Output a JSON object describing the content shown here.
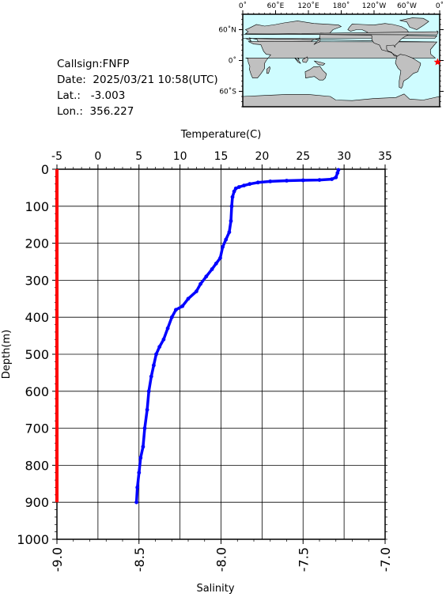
{
  "info": {
    "callsign": "Callsign:FNFP",
    "date": "Date:  2025/03/21 10:58(UTC)",
    "lat": "Lat.:   -3.003",
    "lon": "Lon.:  356.227"
  },
  "map": {
    "lon_labels": [
      "0˚",
      "60˚E",
      "120˚E",
      "180˚",
      "120˚W",
      "60˚W",
      "0˚"
    ],
    "lat_labels": [
      "60˚N",
      "0˚",
      "60˚S"
    ],
    "ocean_color": "#cffcff",
    "land_color": "#c0c0c0",
    "marker_color": "#ff0000",
    "marker": {
      "lon": 356.227,
      "lat": -3.003
    }
  },
  "chart_data": {
    "type": "line",
    "top_axis_label": "Temperature(C)",
    "left_axis_label": "Depth(m)",
    "bottom_axis_label": "Salinity",
    "temperature_ticks": [
      "-5",
      "0",
      "5",
      "10",
      "15",
      "20",
      "25",
      "30",
      "35"
    ],
    "depth_ticks": [
      "0",
      "100",
      "200",
      "300",
      "400",
      "500",
      "600",
      "700",
      "800",
      "900",
      "1000"
    ],
    "salinity_ticks": [
      "-9.0",
      "-8.5",
      "-8.0",
      "-7.5",
      "-7.0"
    ],
    "xlim_temperature": [
      -5,
      35
    ],
    "xlim_salinity": [
      -9.0,
      -7.0
    ],
    "ylim_depth": [
      0,
      1000
    ],
    "series": [
      {
        "axis": "temperature",
        "color": "#0000ff",
        "points": [
          [
            29.3,
            2
          ],
          [
            29.2,
            10
          ],
          [
            29.0,
            22
          ],
          [
            28.5,
            27
          ],
          [
            27.0,
            29
          ],
          [
            25.0,
            30
          ],
          [
            23.0,
            31
          ],
          [
            21.0,
            33
          ],
          [
            19.5,
            36
          ],
          [
            18.5,
            40
          ],
          [
            17.8,
            44
          ],
          [
            17.2,
            48
          ],
          [
            16.8,
            52
          ],
          [
            16.6,
            60
          ],
          [
            16.4,
            75
          ],
          [
            16.3,
            100
          ],
          [
            16.2,
            140
          ],
          [
            16.0,
            170
          ],
          [
            15.6,
            190
          ],
          [
            15.2,
            210
          ],
          [
            14.9,
            240
          ],
          [
            14.4,
            255
          ],
          [
            13.9,
            270
          ],
          [
            13.2,
            290
          ],
          [
            12.5,
            310
          ],
          [
            12.0,
            330
          ],
          [
            11.0,
            350
          ],
          [
            10.3,
            370
          ],
          [
            9.5,
            380
          ],
          [
            9.0,
            400
          ],
          [
            8.5,
            430
          ],
          [
            8.0,
            460
          ],
          [
            7.5,
            480
          ],
          [
            7.1,
            500
          ],
          [
            6.8,
            530
          ],
          [
            6.5,
            560
          ],
          [
            6.2,
            600
          ],
          [
            6.0,
            650
          ],
          [
            5.7,
            700
          ],
          [
            5.5,
            750
          ],
          [
            5.2,
            780
          ],
          [
            5.0,
            820
          ],
          [
            4.8,
            860
          ],
          [
            4.7,
            900
          ]
        ]
      },
      {
        "axis": "salinity",
        "color": "#ff0000",
        "points": [
          [
            -9.0,
            0
          ],
          [
            -9.0,
            900
          ]
        ]
      }
    ]
  }
}
